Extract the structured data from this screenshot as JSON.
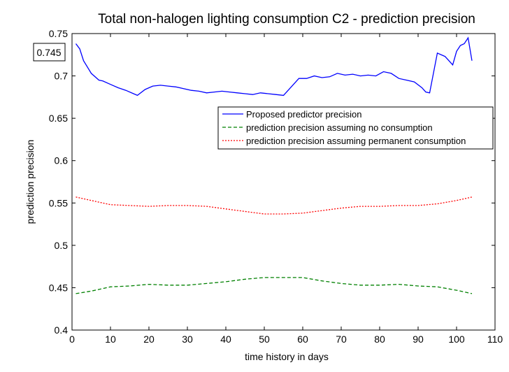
{
  "chart_data": {
    "type": "line",
    "title": "Total non-halogen lighting consumption C2 - prediction precision",
    "xlabel": "time history in days",
    "ylabel": "prediction precision",
    "xlim": [
      0,
      110
    ],
    "ylim": [
      0.4,
      0.75
    ],
    "xticks": [
      0,
      10,
      20,
      30,
      40,
      50,
      60,
      70,
      80,
      90,
      100,
      110
    ],
    "yticks": [
      0.4,
      0.45,
      0.5,
      0.55,
      0.6,
      0.65,
      0.7,
      0.75
    ],
    "xtick_labels": [
      "0",
      "10",
      "20",
      "30",
      "40",
      "50",
      "60",
      "70",
      "80",
      "90",
      "100",
      "110"
    ],
    "ytick_labels": [
      "0.4",
      "0.45",
      "0.5",
      "0.55",
      "0.6",
      "0.65",
      "0.7",
      "0.75"
    ],
    "grid": false,
    "legend_position": "right",
    "annotation": "0.745",
    "series": [
      {
        "name": "Proposed predictor precision",
        "color": "#0000ff",
        "dash": "solid",
        "x": [
          1,
          2,
          3,
          5,
          7,
          8,
          10,
          12,
          14,
          16,
          17,
          19,
          21,
          23,
          25,
          27,
          29,
          31,
          33,
          35,
          37,
          39,
          41,
          43,
          45,
          47,
          49,
          51,
          53,
          55,
          57,
          59,
          61,
          63,
          65,
          67,
          69,
          71,
          73,
          75,
          77,
          79,
          81,
          83,
          85,
          87,
          89,
          91,
          92,
          93,
          95,
          97,
          99,
          100,
          101,
          102,
          103,
          104
        ],
        "y": [
          0.738,
          0.732,
          0.718,
          0.703,
          0.695,
          0.694,
          0.69,
          0.686,
          0.683,
          0.679,
          0.677,
          0.684,
          0.688,
          0.689,
          0.688,
          0.687,
          0.685,
          0.683,
          0.682,
          0.68,
          0.681,
          0.682,
          0.681,
          0.68,
          0.679,
          0.678,
          0.68,
          0.679,
          0.678,
          0.677,
          0.687,
          0.697,
          0.697,
          0.7,
          0.698,
          0.699,
          0.703,
          0.701,
          0.702,
          0.7,
          0.701,
          0.7,
          0.705,
          0.703,
          0.697,
          0.695,
          0.693,
          0.686,
          0.681,
          0.68,
          0.727,
          0.723,
          0.713,
          0.729,
          0.736,
          0.738,
          0.745,
          0.718
        ]
      },
      {
        "name": "prediction precision assuming no consumption",
        "color": "#008000",
        "dash": "dashed",
        "x": [
          1,
          5,
          10,
          15,
          20,
          25,
          30,
          35,
          40,
          45,
          50,
          55,
          60,
          65,
          70,
          75,
          80,
          85,
          90,
          95,
          100,
          104
        ],
        "y": [
          0.443,
          0.446,
          0.451,
          0.452,
          0.454,
          0.453,
          0.453,
          0.455,
          0.457,
          0.46,
          0.462,
          0.462,
          0.462,
          0.458,
          0.455,
          0.453,
          0.453,
          0.454,
          0.452,
          0.451,
          0.447,
          0.443
        ]
      },
      {
        "name": "prediction precision assuming permanent consumption",
        "color": "#ff0000",
        "dash": "dotted",
        "x": [
          1,
          5,
          10,
          15,
          20,
          25,
          30,
          35,
          40,
          45,
          50,
          55,
          60,
          65,
          70,
          75,
          80,
          85,
          90,
          95,
          100,
          104
        ],
        "y": [
          0.557,
          0.553,
          0.548,
          0.547,
          0.546,
          0.547,
          0.547,
          0.546,
          0.543,
          0.54,
          0.537,
          0.537,
          0.538,
          0.541,
          0.544,
          0.546,
          0.546,
          0.547,
          0.547,
          0.549,
          0.553,
          0.557
        ]
      }
    ]
  }
}
